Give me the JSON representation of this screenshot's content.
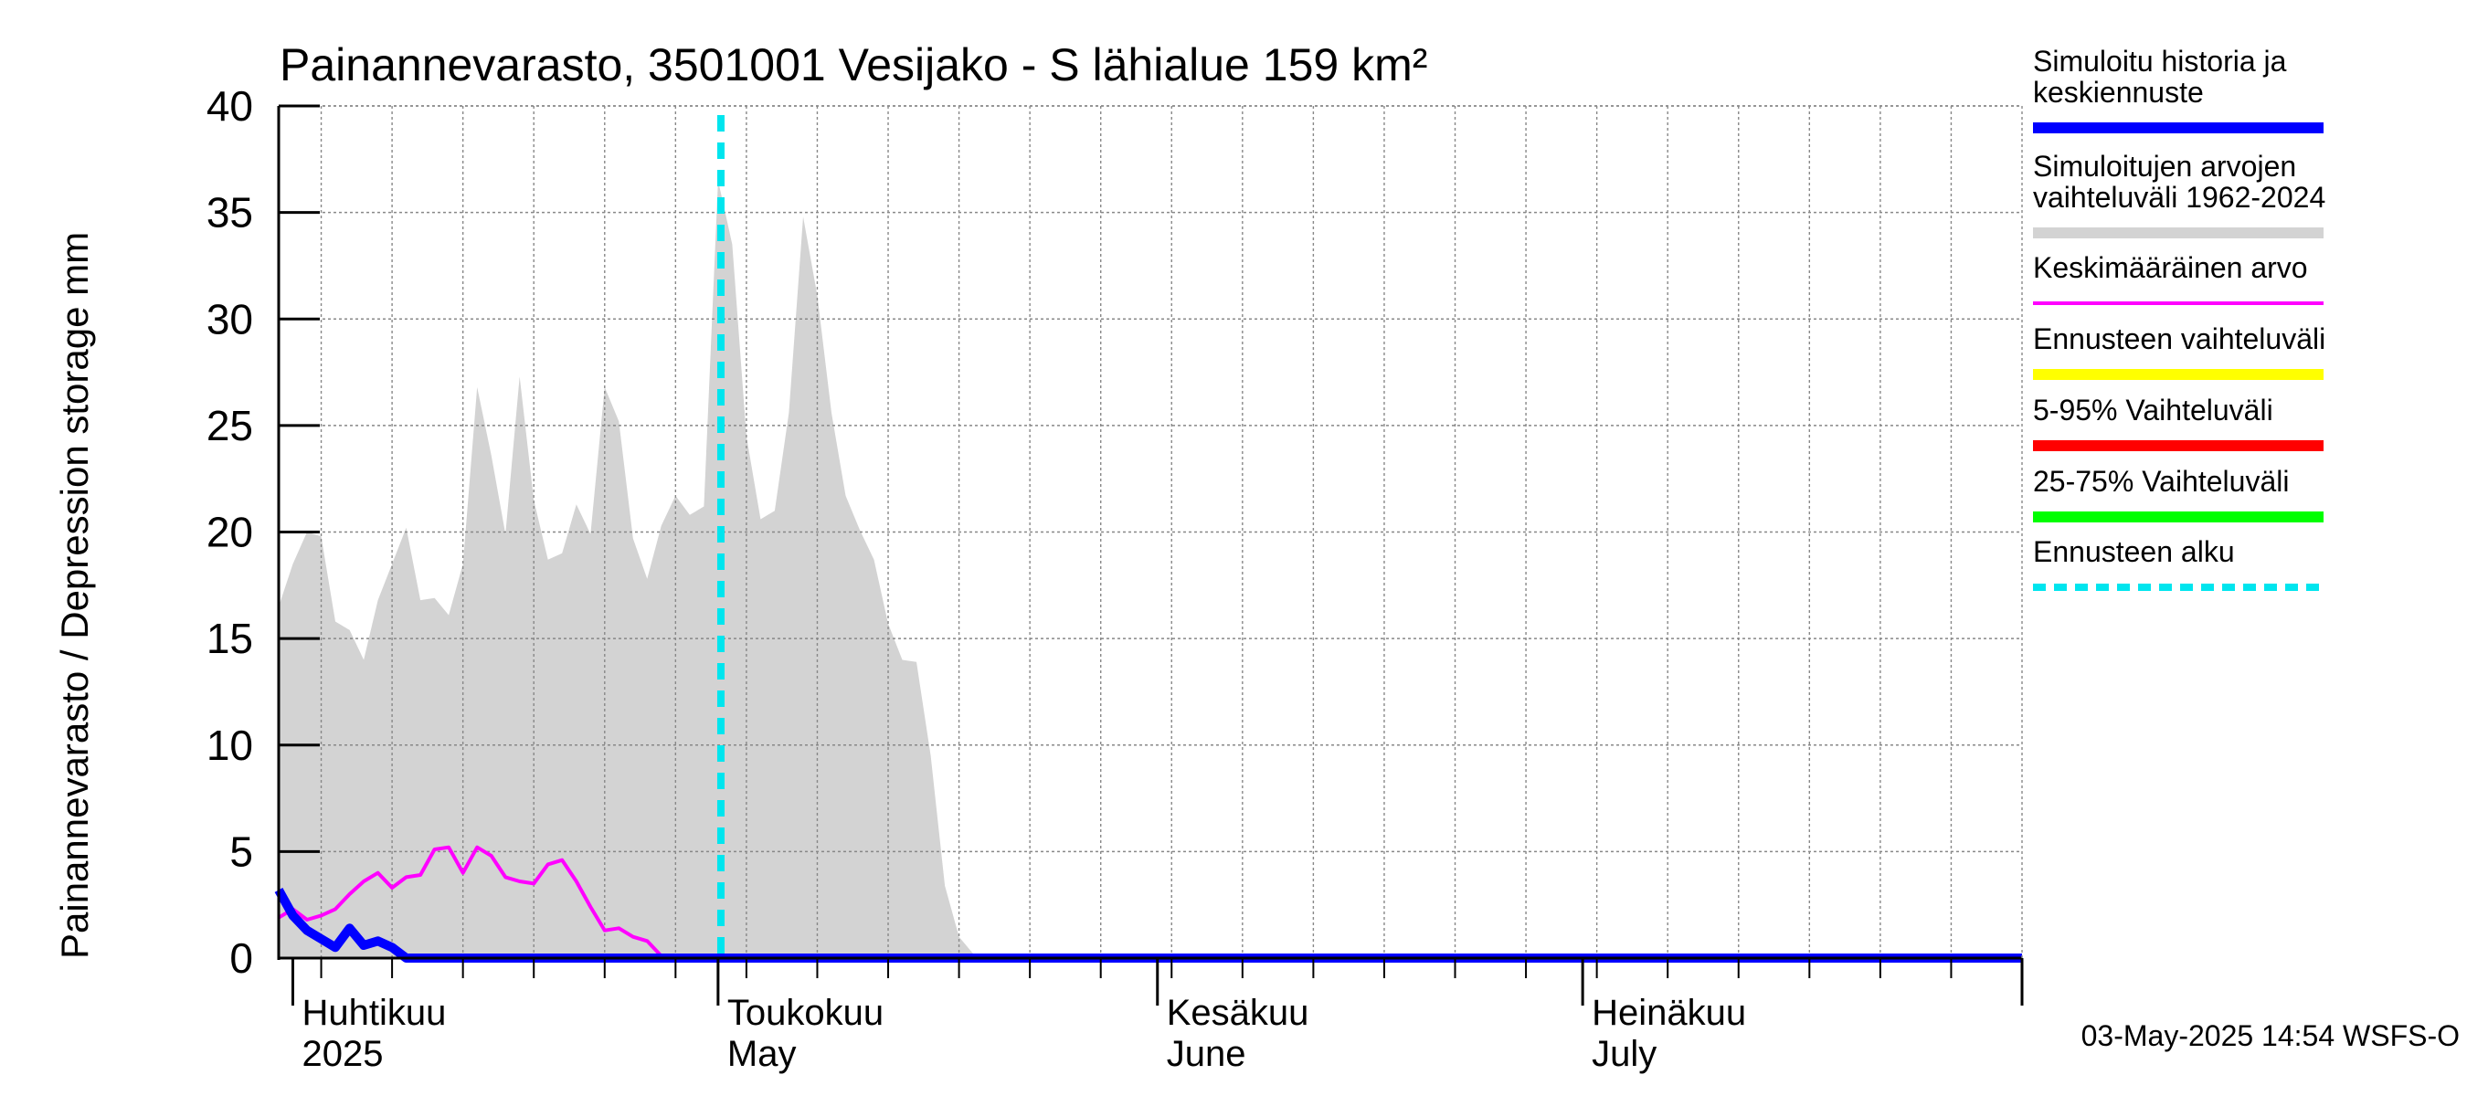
{
  "chart_data": {
    "type": "area",
    "title": "Painannevarasto, 3501001 Vesijako - S lähialue 159 km²",
    "ylabel": "Painannevarasto / Depression storage    mm",
    "ylim": [
      0,
      40
    ],
    "yticks": [
      "0",
      "5",
      "10",
      "15",
      "20",
      "25",
      "30",
      "35",
      "40"
    ],
    "x_range_days": [
      0,
      123
    ],
    "x_start_date": "2025-03-31",
    "grid": true,
    "month_ticks": [
      {
        "day": 1,
        "fi": "Huhtikuu",
        "en": "2025"
      },
      {
        "day": 31,
        "fi": "Toukokuu",
        "en": "May"
      },
      {
        "day": 62,
        "fi": "Kesäkuu",
        "en": "June"
      },
      {
        "day": 92,
        "fi": "Heinäkuu",
        "en": "July"
      }
    ],
    "month_boundaries_days": [
      1,
      31,
      62,
      92,
      123
    ],
    "forecast_start_day": 31.2,
    "series": [
      {
        "name": "Simuloitujen arvojen vaihteluväli 1962-2024",
        "kind": "band",
        "color": "#d3d3d3",
        "x": [
          0,
          1,
          2,
          3,
          4,
          5,
          6,
          7,
          8,
          9,
          10,
          11,
          12,
          13,
          14,
          15,
          16,
          17,
          18,
          19,
          20,
          21,
          22,
          23,
          24,
          25,
          26,
          27,
          28,
          29,
          30,
          31,
          32,
          33,
          34,
          35,
          36,
          37,
          38,
          39,
          40,
          41,
          42,
          43,
          44,
          45,
          46,
          47,
          48,
          49,
          50
        ],
        "lower": [
          0,
          0,
          0,
          0,
          0,
          0,
          0,
          0,
          0,
          0,
          0,
          0,
          0,
          0,
          0,
          0,
          0,
          0,
          0,
          0,
          0,
          0,
          0,
          0,
          0,
          0,
          0,
          0,
          0,
          0,
          0,
          0,
          0,
          0,
          0,
          0,
          0,
          0,
          0,
          0,
          0,
          0,
          0,
          0,
          0,
          0,
          0,
          0,
          0,
          0,
          0
        ],
        "upper": [
          16.5,
          18.5,
          20,
          19.8,
          15.8,
          15.4,
          14.0,
          16.8,
          18.5,
          20.2,
          16.8,
          16.9,
          16.1,
          18.5,
          26.8,
          23.6,
          19.9,
          27.3,
          21.5,
          18.7,
          19.0,
          21.3,
          19.9,
          26.8,
          25.2,
          19.7,
          17.8,
          20.3,
          21.7,
          20.8,
          21.2,
          36.5,
          33.5,
          24.5,
          20.6,
          21.0,
          25.6,
          34.8,
          31.1,
          25.6,
          21.7,
          20.1,
          18.7,
          15.7,
          14.0,
          13.9,
          9.5,
          3.4,
          1.0,
          0.2,
          0
        ]
      },
      {
        "name": "Keskimääräinen arvo",
        "kind": "line",
        "color": "#ff00ff",
        "x": [
          0,
          1,
          2,
          3,
          4,
          5,
          6,
          7,
          8,
          9,
          10,
          11,
          12,
          13,
          14,
          15,
          16,
          17,
          18,
          19,
          20,
          21,
          22,
          23,
          24,
          25,
          26,
          27,
          28,
          29,
          30,
          31,
          123
        ],
        "values": [
          1.9,
          2.3,
          1.8,
          2.0,
          2.3,
          3.0,
          3.6,
          4.0,
          3.3,
          3.8,
          3.9,
          5.1,
          5.2,
          4.0,
          5.2,
          4.8,
          3.8,
          3.6,
          3.5,
          4.4,
          4.6,
          3.6,
          2.4,
          1.3,
          1.4,
          1.0,
          0.8,
          0.1,
          0,
          0,
          0,
          0,
          0
        ]
      },
      {
        "name": "Simuloitu historia ja keskiennuste",
        "kind": "line",
        "color": "#0000ff",
        "x": [
          0,
          1,
          2,
          3,
          4,
          5,
          6,
          7,
          8,
          9,
          10,
          11,
          12,
          13,
          14,
          15,
          16,
          17,
          18,
          19,
          20,
          21,
          22,
          23,
          24,
          25,
          26,
          27,
          28,
          29,
          30,
          31,
          123
        ],
        "values": [
          3.2,
          2.0,
          1.3,
          0.9,
          0.5,
          1.4,
          0.6,
          0.8,
          0.5,
          0,
          0,
          0,
          0,
          0,
          0,
          0,
          0,
          0,
          0,
          0,
          0,
          0,
          0,
          0,
          0,
          0,
          0,
          0,
          0,
          0,
          0,
          0,
          0
        ]
      }
    ],
    "legend": [
      {
        "label": "Simuloitu historia ja keskiennuste",
        "color": "#0000ff",
        "style": "thick"
      },
      {
        "label": "Simuloitujen arvojen vaihteluväli 1962-2024",
        "color": "#d3d3d3",
        "style": "thick"
      },
      {
        "label": "Keskimääräinen arvo",
        "color": "#ff00ff",
        "style": "thin"
      },
      {
        "label": "Ennusteen vaihteluväli",
        "color": "#ffff00",
        "style": "thick"
      },
      {
        "label": "5-95% Vaihteluväli",
        "color": "#ff0000",
        "style": "thick"
      },
      {
        "label": "25-75% Vaihteluväli",
        "color": "#00ff00",
        "style": "thick"
      },
      {
        "label": "Ennusteen alku",
        "color": "#00e5ee",
        "style": "dashed"
      }
    ],
    "footer": "03-May-2025 14:54 WSFS-O"
  }
}
